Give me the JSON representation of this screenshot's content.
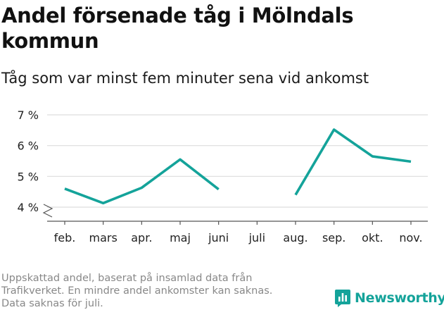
{
  "title_lines": [
    "Andel försenade tåg i Mölndals",
    "kommun"
  ],
  "subtitle": "Tåg som var minst fem minuter sena vid ankomst",
  "footer_lines": [
    "Uppskattad andel, baserat på insamlad data från",
    "Trafikverket. En mindre andel ankomster kan saknas.",
    "Data saknas för juli."
  ],
  "brand": {
    "name": "Newsworthy",
    "color": "#14a39a",
    "icon": "newsworthy-logo-icon"
  },
  "chart_data": {
    "type": "line",
    "categories": [
      "feb.",
      "mars",
      "apr.",
      "maj",
      "juni",
      "juli",
      "aug.",
      "sep.",
      "okt.",
      "nov."
    ],
    "series": [
      {
        "values": [
          4.6,
          4.13,
          4.63,
          5.55,
          4.58,
          null,
          4.4,
          6.52,
          5.65,
          5.48
        ],
        "color": "#14a39a"
      }
    ],
    "title": "",
    "xlabel": "",
    "ylabel": "",
    "y_ticks": [
      4,
      5,
      6,
      7
    ],
    "y_tick_labels": [
      "4 %",
      "5 %",
      "6 %",
      "7 %"
    ],
    "ylim": [
      4,
      7
    ],
    "axis_break": true,
    "grid": true,
    "legend": "none"
  }
}
